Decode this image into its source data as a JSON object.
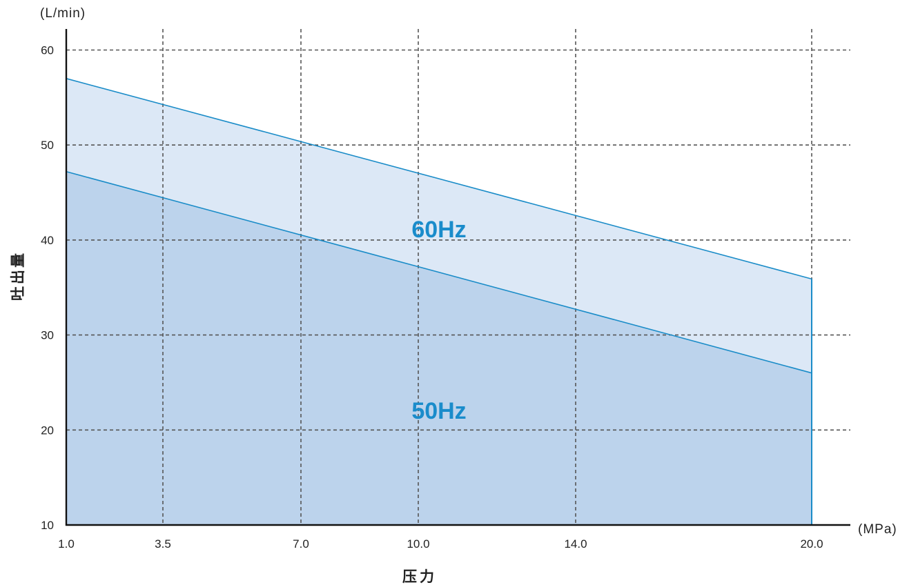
{
  "chart_data": {
    "type": "area",
    "y_unit": "(L/min)",
    "x_unit": "(MPa)",
    "xlabel": "压力",
    "ylabel": "吐出量",
    "x_ticks": [
      1.0,
      3.5,
      7.0,
      10.0,
      14.0,
      20.0
    ],
    "x_tick_labels": [
      "1.0",
      "3.5",
      "7.0",
      "10.0",
      "14.0",
      "20.0"
    ],
    "y_ticks": [
      10,
      20,
      30,
      40,
      50,
      60
    ],
    "y_tick_labels": [
      "10",
      "20",
      "30",
      "40",
      "50",
      "60"
    ],
    "xlim": [
      1.0,
      20.0
    ],
    "ylim": [
      10,
      62
    ],
    "grid": true,
    "series": [
      {
        "name": "60Hz",
        "x": [
          1.0,
          20.0
        ],
        "y": [
          57.0,
          35.9
        ],
        "fill": "#dce8f6",
        "stroke": "#1a8cc8"
      },
      {
        "name": "50Hz",
        "x": [
          1.0,
          20.0
        ],
        "y": [
          47.2,
          26.0
        ],
        "fill": "#bcd3ec",
        "stroke": "#1a8cc8"
      }
    ],
    "label_color": "#1a8ccb"
  }
}
